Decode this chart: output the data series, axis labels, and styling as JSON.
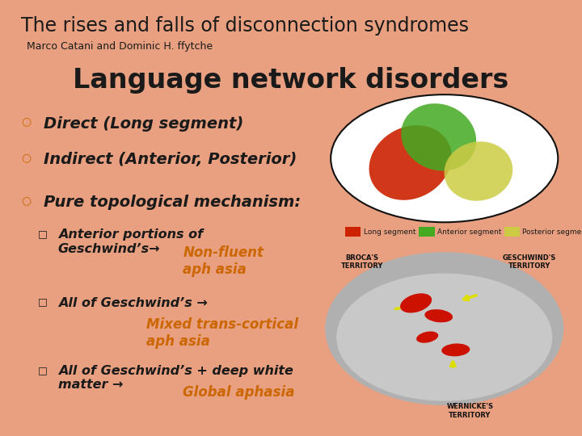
{
  "bg_color": "#fce8dc",
  "inner_bg": "#fdf8f5",
  "border_color": "#e8a080",
  "title_main": "The rises and falls of disconnection syndromes",
  "title_main_fontsize": 17,
  "author_line": "Marco Catani and Dominic H. ffytche",
  "author_fontsize": 9,
  "section_title": "Language network disorders",
  "section_title_fontsize": 24,
  "bullets": [
    "Direct (Long segment)",
    "Indirect (Anterior, Posterior)",
    "Pure topological mechanism:"
  ],
  "bullets_fontsize": 14,
  "sub_bullets_fontsize": 11.5,
  "orange_color": "#cc6600",
  "dark_color": "#1a1a1a",
  "sub1_black": "Anterior portions of\nGeschwind’s→",
  "sub1_orange": "Non-fluent\naph asia",
  "sub2_black": "All of Geschwind’s →",
  "sub2_orange": "Mixed trans-cortical\naph asia",
  "sub3_black": "All of Geschwind’s + deep white\nmatter →",
  "sub3_orange": "Global aphasia",
  "legend_labels": [
    "Long segment",
    "Anterior segment",
    "Posterior segment"
  ],
  "legend_colors": [
    "#cc2200",
    "#44aa22",
    "#cccc44"
  ],
  "broca_label": "BROCA'S\nTERRITORY",
  "geschwind_label": "GESCHWIND'S\nTERRITORY",
  "wernicke_label": "WERNICKE'S\nTERRITORY"
}
